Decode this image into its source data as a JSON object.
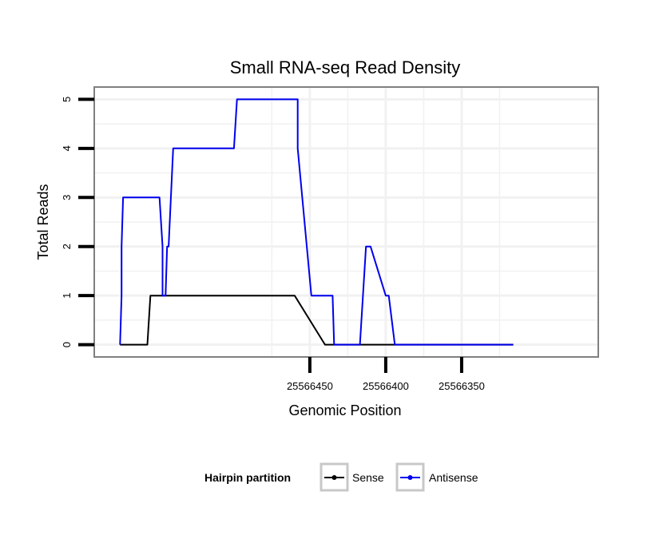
{
  "chart_data": {
    "type": "line",
    "title": "Small RNA-seq Read Density",
    "xlabel": "Genomic Position",
    "ylabel": "Total Reads",
    "x_reversed": true,
    "xlim": [
      25566592,
      25566260
    ],
    "ylim": [
      -0.25,
      5.25
    ],
    "x_ticks": [
      25566450,
      25566400,
      25566350
    ],
    "x_tick_labels": [
      "25566450",
      "25566400",
      "25566350"
    ],
    "y_ticks": [
      0,
      1,
      2,
      3,
      4,
      5
    ],
    "y_tick_labels": [
      "0",
      "1",
      "2",
      "3",
      "4",
      "5"
    ],
    "grid": true,
    "legend": {
      "title": "Hairpin partition",
      "position": "bottom",
      "entries": [
        {
          "label": "Sense",
          "color": "#000000"
        },
        {
          "label": "Antisense",
          "color": "#0000ee"
        }
      ]
    },
    "series": [
      {
        "name": "Sense",
        "color": "#000000",
        "x": [
          25566575,
          25566557,
          25566555,
          25566553,
          25566532,
          25566530,
          25566528,
          25566460,
          25566440,
          25566420,
          25566400,
          25566380,
          25566360,
          25566340,
          25566316
        ],
        "y": [
          0,
          0,
          1,
          1,
          1,
          1,
          1,
          1,
          0,
          0,
          0,
          0,
          0,
          0,
          0
        ]
      },
      {
        "name": "Antisense",
        "color": "#0000ee",
        "x": [
          25566575,
          25566574,
          25566574,
          25566573,
          25566551,
          25566549,
          25566547,
          25566547,
          25566546,
          25566545,
          25566544,
          25566543,
          25566540,
          25566520,
          25566500,
          25566500,
          25566498,
          25566460,
          25566458,
          25566458,
          25566449,
          25566446,
          25566437,
          25566435,
          25566434,
          25566432,
          25566419,
          25566417,
          25566415,
          25566413,
          25566411,
          25566410,
          25566400,
          25566398,
          25566394,
          25566316
        ],
        "y": [
          0,
          1,
          2,
          3,
          3,
          3,
          2,
          1,
          1,
          1,
          2,
          2,
          4,
          4,
          4,
          4,
          5,
          5,
          5,
          4,
          1,
          1,
          1,
          1,
          0,
          0,
          0,
          0,
          1,
          2,
          2,
          2,
          1,
          1,
          0,
          0
        ]
      }
    ]
  }
}
